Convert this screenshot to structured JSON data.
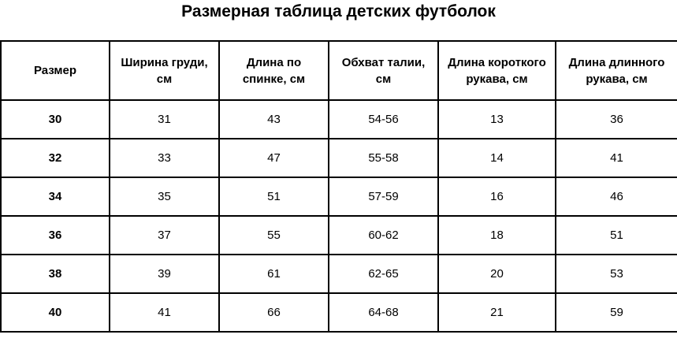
{
  "title": "Размерная таблица детских футболок",
  "headers": [
    "Размер",
    "Ширина груди, см",
    "Длина по спинке, см",
    "Обхват талии, см",
    "Длина короткого рукава, см",
    "Длина длинного рукава, см"
  ],
  "rows": [
    [
      "30",
      "31",
      "43",
      "54-56",
      "13",
      "36"
    ],
    [
      "32",
      "33",
      "47",
      "55-58",
      "14",
      "41"
    ],
    [
      "34",
      "35",
      "51",
      "57-59",
      "16",
      "46"
    ],
    [
      "36",
      "37",
      "55",
      "60-62",
      "18",
      "51"
    ],
    [
      "38",
      "39",
      "61",
      "62-65",
      "20",
      "53"
    ],
    [
      "40",
      "41",
      "66",
      "64-68",
      "21",
      "59"
    ]
  ]
}
